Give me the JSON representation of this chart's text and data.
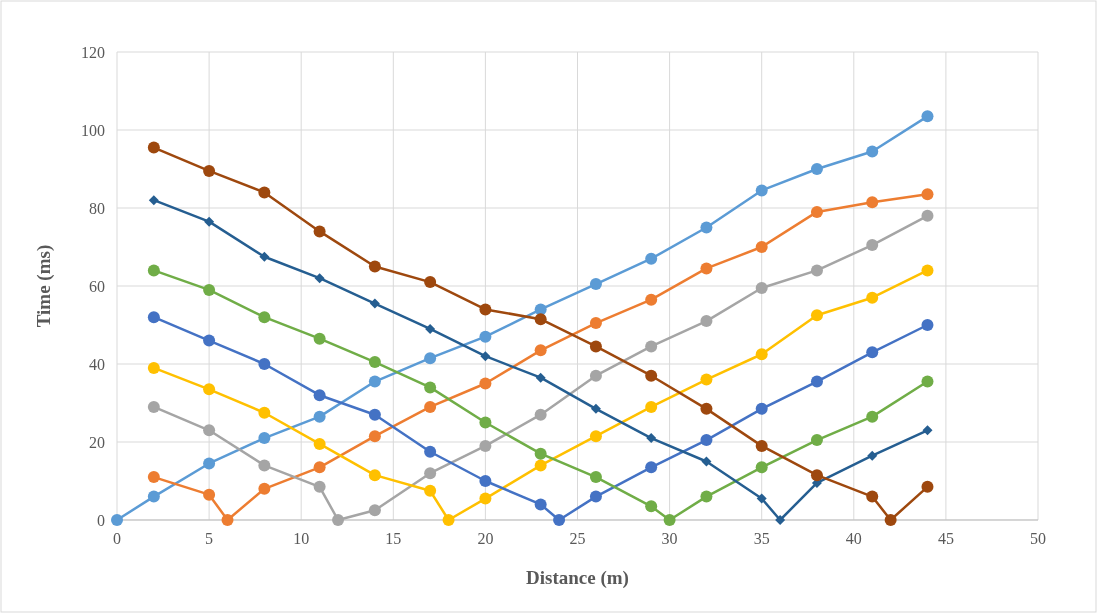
{
  "chart_data": {
    "type": "line",
    "xlabel": "Distance (m)",
    "ylabel": "Time (ms)",
    "xlim": [
      0,
      50
    ],
    "xticks": [
      0,
      5,
      10,
      15,
      20,
      25,
      30,
      35,
      40,
      45,
      50
    ],
    "ylim": [
      0,
      120
    ],
    "yticks": [
      0,
      20,
      40,
      60,
      80,
      100,
      120
    ],
    "grid": true,
    "marker": "circle",
    "line_style": "solid",
    "series": [
      {
        "color": "#5b9bd5",
        "x": [
          0,
          2,
          5,
          8,
          11,
          14,
          17,
          20,
          23,
          26,
          29,
          32,
          35,
          38,
          41,
          44
        ],
        "values": [
          0,
          6,
          14.5,
          21,
          26.5,
          35.5,
          41.5,
          47,
          54,
          60.5,
          67,
          75,
          84.5,
          90,
          94.5,
          103.5
        ]
      },
      {
        "color": "#ed7d31",
        "x": [
          2,
          5,
          6,
          8,
          11,
          14,
          17,
          20,
          23,
          26,
          29,
          32,
          35,
          38,
          41,
          44
        ],
        "values": [
          11,
          6.5,
          0,
          8,
          13.5,
          21.5,
          29,
          35,
          43.5,
          50.5,
          56.5,
          64.5,
          70,
          79,
          81.5,
          83.5
        ]
      },
      {
        "color": "#a5a5a5",
        "x": [
          2,
          5,
          8,
          11,
          12,
          14,
          17,
          20,
          23,
          26,
          29,
          32,
          35,
          38,
          41,
          44
        ],
        "values": [
          29,
          23,
          14,
          8.5,
          0,
          2.5,
          12,
          19,
          27,
          37,
          44.5,
          51,
          59.5,
          64,
          70.5,
          78
        ]
      },
      {
        "color": "#ffc000",
        "x": [
          2,
          5,
          8,
          11,
          14,
          17,
          18,
          20,
          23,
          26,
          29,
          32,
          35,
          38,
          41,
          44
        ],
        "values": [
          39,
          33.5,
          27.5,
          19.5,
          11.5,
          7.5,
          0,
          5.5,
          14,
          21.5,
          29,
          36,
          42.5,
          52.5,
          57,
          64
        ]
      },
      {
        "color": "#4472c4",
        "x": [
          2,
          5,
          8,
          11,
          14,
          17,
          20,
          23,
          24,
          26,
          29,
          32,
          35,
          38,
          41,
          44
        ],
        "values": [
          52,
          46,
          40,
          32,
          27,
          17.5,
          10,
          4,
          0,
          6,
          13.5,
          20.5,
          28.5,
          35.5,
          43,
          50
        ]
      },
      {
        "color": "#70ad47",
        "x": [
          2,
          5,
          8,
          11,
          14,
          17,
          20,
          23,
          26,
          29,
          30,
          32,
          35,
          38,
          41,
          44
        ],
        "values": [
          64,
          59,
          52,
          46.5,
          40.5,
          34,
          25,
          17,
          11,
          3.5,
          0,
          6,
          13.5,
          20.5,
          26.5,
          35.5
        ]
      },
      {
        "color": "#255e91",
        "marker": "diamond",
        "x": [
          2,
          5,
          8,
          11,
          14,
          17,
          20,
          23,
          26,
          29,
          32,
          35,
          36,
          38,
          41,
          44
        ],
        "values": [
          82,
          76.5,
          67.5,
          62,
          55.5,
          49,
          42,
          36.5,
          28.5,
          21,
          15,
          5.5,
          0,
          9.5,
          16.5,
          23
        ]
      },
      {
        "color": "#9e480e",
        "x": [
          2,
          5,
          8,
          11,
          14,
          17,
          20,
          23,
          26,
          29,
          32,
          35,
          38,
          41,
          42,
          44
        ],
        "values": [
          95.5,
          89.5,
          84,
          74,
          65,
          61,
          54,
          51.5,
          44.5,
          37,
          28.5,
          19,
          11.5,
          6,
          0,
          8.5
        ]
      }
    ]
  }
}
